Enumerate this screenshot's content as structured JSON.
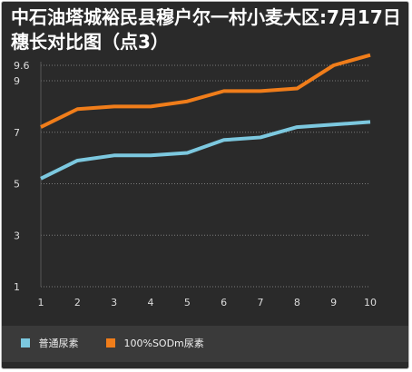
{
  "chart_data": {
    "type": "line",
    "title": "中石油塔城裕民县穆户尔一村小麦大区:7月17日穗长对比图（点3）",
    "x": [
      1,
      2,
      3,
      4,
      5,
      6,
      7,
      8,
      9,
      10
    ],
    "x_tick_labels": [
      "1",
      "2",
      "3",
      "4",
      "5",
      "6",
      "7",
      "8",
      "9",
      "10"
    ],
    "y_ticks": [
      1,
      3,
      5,
      7,
      9,
      9.6
    ],
    "y_tick_labels": [
      "1",
      "3",
      "5",
      "7",
      "9",
      "9.6"
    ],
    "ylim": [
      1,
      9.6
    ],
    "series": [
      {
        "name": "普通尿素",
        "color": "#7cc8df",
        "values": [
          5.2,
          5.9,
          6.1,
          6.1,
          6.2,
          6.7,
          6.8,
          7.2,
          7.3,
          7.4
        ]
      },
      {
        "name": "100%SODm尿素",
        "color": "#f07d1a",
        "values": [
          7.2,
          7.9,
          8.0,
          8.0,
          8.2,
          8.6,
          8.6,
          8.7,
          9.6,
          10.0
        ]
      }
    ],
    "grid": true,
    "legend_position": "bottom"
  }
}
